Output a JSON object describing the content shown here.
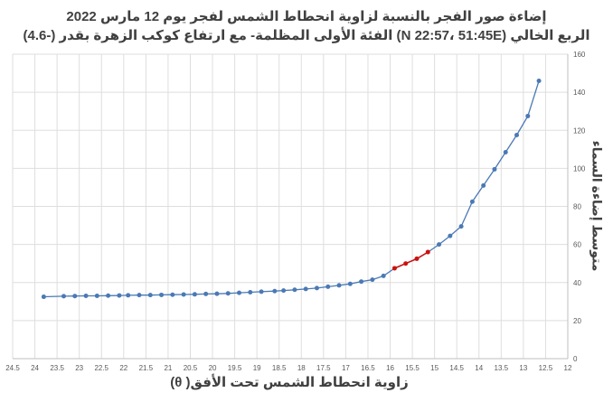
{
  "chart_data": {
    "type": "line",
    "title": "إضاءة صور الفجر بالنسبة لزاوية انحطاط الشمس لفجر يوم 12 مارس 2022",
    "subtitle": "الربع الخالي (N 22:57، 51:45E) الفئة الأولى المظلمة- مع ارتفاع كوكب الزهرة بقدر (-4.6)",
    "xlabel": "زاوية انحطاط الشمس تحت الأفق( θ)",
    "ylabel": "متوسط إضاءة السماء",
    "x_reversed": true,
    "xlim": [
      24.5,
      12
    ],
    "ylim": [
      0,
      160
    ],
    "x_ticks": [
      24.5,
      24,
      23.5,
      23,
      22.5,
      22,
      21.5,
      21,
      20.5,
      20,
      19.5,
      19,
      18.5,
      18,
      17.5,
      17,
      16.5,
      16,
      15.5,
      15,
      14.5,
      14,
      13.5,
      13,
      12.5,
      12
    ],
    "x_tick_labels": [
      "24.5",
      "24",
      "23.5",
      "23",
      "22.5",
      "22",
      "21.5",
      "21",
      "20.5",
      "20",
      "19.5",
      "19",
      "18.5",
      "18",
      "17.5",
      "17",
      "16.5",
      "16",
      "15.5",
      "15",
      "14.5",
      "14",
      "13.5",
      "13",
      "12.5",
      "12"
    ],
    "y_ticks": [
      0,
      20,
      40,
      60,
      80,
      100,
      120,
      140,
      160
    ],
    "y_axis_position": "right",
    "grid": true,
    "series_color": "#4a7ab5",
    "highlight_color": "#cc1111",
    "x": [
      23.8,
      23.35,
      23.1,
      22.85,
      22.6,
      22.35,
      22.1,
      21.9,
      21.65,
      21.4,
      21.15,
      20.9,
      20.65,
      20.4,
      20.15,
      19.9,
      19.65,
      19.4,
      19.15,
      18.9,
      18.6,
      18.4,
      18.15,
      17.9,
      17.65,
      17.4,
      17.15,
      16.9,
      16.65,
      16.4,
      16.15,
      15.9,
      15.65,
      15.4,
      15.15,
      14.9,
      14.65,
      14.4,
      14.15,
      13.9,
      13.65,
      13.4,
      13.15,
      12.9,
      12.65
    ],
    "values": [
      32.5,
      32.8,
      32.9,
      33.0,
      33.0,
      33.1,
      33.2,
      33.3,
      33.4,
      33.4,
      33.5,
      33.6,
      33.7,
      33.8,
      34.0,
      34.1,
      34.3,
      34.6,
      34.9,
      35.2,
      35.5,
      35.8,
      36.2,
      36.6,
      37.1,
      37.8,
      38.5,
      39.3,
      40.5,
      41.5,
      43.5,
      47.5,
      50.0,
      52.5,
      56.0,
      60.0,
      64.5,
      69.5,
      82.5,
      91.0,
      99.5,
      108.5,
      117.5,
      127.5,
      146.0
    ],
    "highlight_x_range": [
      15.15,
      15.9
    ]
  }
}
